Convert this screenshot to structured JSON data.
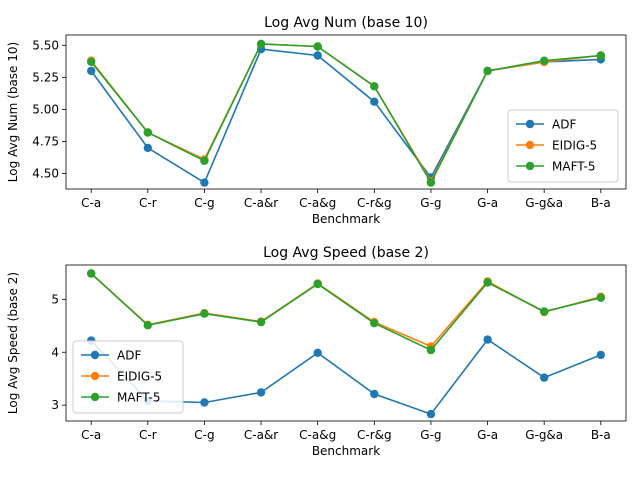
{
  "chart_data": [
    {
      "type": "line",
      "title": "Log Avg Num (base 10)",
      "xlabel": "Benchmark",
      "ylabel": "Log Avg Num (base 10)",
      "categories": [
        "C-a",
        "C-r",
        "C-g",
        "C-a&r",
        "C-a&g",
        "C-r&g",
        "G-g",
        "G-a",
        "G-g&a",
        "B-a"
      ],
      "ylim": [
        4.38,
        5.58
      ],
      "yticks": [
        4.5,
        4.75,
        5.0,
        5.25,
        5.5
      ],
      "ytick_labels": [
        "4.50",
        "4.75",
        "5.00",
        "5.25",
        "5.50"
      ],
      "grid": false,
      "legend": "lower right",
      "series": [
        {
          "name": "ADF",
          "color": "#1f77b4",
          "values": [
            5.3,
            4.7,
            4.43,
            5.47,
            5.42,
            5.06,
            4.47,
            5.3,
            5.37,
            5.39
          ]
        },
        {
          "name": "EIDIG-5",
          "color": "#ff7f0e",
          "values": [
            5.38,
            4.82,
            4.61,
            5.51,
            5.49,
            5.18,
            4.44,
            5.3,
            5.37,
            5.42
          ]
        },
        {
          "name": "MAFT-5",
          "color": "#2ca02c",
          "values": [
            5.37,
            4.82,
            4.6,
            5.51,
            5.49,
            5.18,
            4.43,
            5.3,
            5.38,
            5.42
          ]
        }
      ]
    },
    {
      "type": "line",
      "title": "Log Avg Speed (base 2)",
      "xlabel": "Benchmark",
      "ylabel": "Log Avg Speed (base 2)",
      "categories": [
        "C-a",
        "C-r",
        "C-g",
        "C-a&r",
        "C-a&g",
        "C-r&g",
        "G-g",
        "G-a",
        "G-g&a",
        "B-a"
      ],
      "ylim": [
        2.7,
        5.65
      ],
      "yticks": [
        3,
        4,
        5
      ],
      "ytick_labels": [
        "3",
        "4",
        "5"
      ],
      "grid": false,
      "legend": "lower left",
      "series": [
        {
          "name": "ADF",
          "color": "#1f77b4",
          "values": [
            4.22,
            3.08,
            3.05,
            3.24,
            3.99,
            3.21,
            2.83,
            4.24,
            3.52,
            3.95
          ]
        },
        {
          "name": "EIDIG-5",
          "color": "#ff7f0e",
          "values": [
            5.49,
            4.52,
            4.74,
            4.58,
            5.3,
            4.57,
            4.11,
            5.34,
            4.76,
            5.05
          ]
        },
        {
          "name": "MAFT-5",
          "color": "#2ca02c",
          "values": [
            5.49,
            4.51,
            4.73,
            4.57,
            5.29,
            4.55,
            4.04,
            5.32,
            4.77,
            5.03
          ]
        }
      ]
    }
  ]
}
